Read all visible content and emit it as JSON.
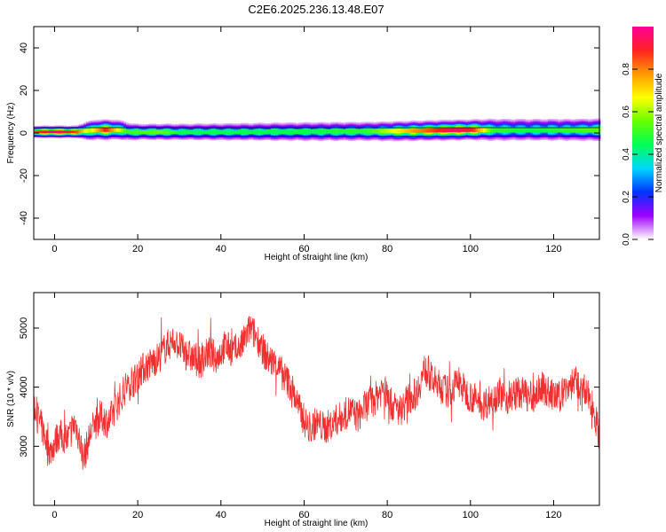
{
  "title": "C2E6.2025.236.13.48.E07",
  "chart_data": [
    {
      "type": "heatmap",
      "xlabel": "Height of straight line (km)",
      "ylabel": "Frequency (Hz)",
      "xlim": [
        -5,
        131
      ],
      "ylim": [
        -50,
        50
      ],
      "xticks": [
        0,
        20,
        40,
        60,
        80,
        100,
        120
      ],
      "yticks": [
        -40,
        -20,
        0,
        20,
        40
      ],
      "colorbar": {
        "label": "Normalized spectral amplitude",
        "range": [
          0,
          1
        ],
        "ticks": [
          0.0,
          0.2,
          0.4,
          0.6,
          0.8
        ],
        "colors": [
          "#ffffff",
          "#9f00ff",
          "#0033ff",
          "#00d8ff",
          "#00ff55",
          "#66ff00",
          "#ffff00",
          "#ff9900",
          "#ff2222",
          "#ff0099"
        ]
      },
      "band": {
        "center_hz": [
          [
            -5,
            0.5
          ],
          [
            5,
            0.5
          ],
          [
            10,
            1.5
          ],
          [
            15,
            1.5
          ],
          [
            18,
            0.5
          ],
          [
            40,
            0.5
          ],
          [
            80,
            0.8
          ],
          [
            100,
            1.5
          ],
          [
            110,
            1.5
          ],
          [
            131,
            1.5
          ]
        ],
        "half_width_hz": [
          [
            -5,
            1.8
          ],
          [
            5,
            1.8
          ],
          [
            8,
            3.0
          ],
          [
            16,
            3.0
          ],
          [
            20,
            2.5
          ],
          [
            60,
            3.0
          ],
          [
            100,
            3.0
          ],
          [
            105,
            3.5
          ],
          [
            131,
            3.5
          ]
        ],
        "peak": [
          [
            -5,
            0.85
          ],
          [
            0,
            1.0
          ],
          [
            5,
            0.85
          ],
          [
            8,
            0.6
          ],
          [
            12,
            0.9
          ],
          [
            17,
            0.5
          ],
          [
            25,
            0.55
          ],
          [
            30,
            0.45
          ],
          [
            40,
            0.45
          ],
          [
            60,
            0.45
          ],
          [
            75,
            0.5
          ],
          [
            85,
            0.75
          ],
          [
            95,
            0.95
          ],
          [
            100,
            0.9
          ],
          [
            105,
            0.5
          ],
          [
            115,
            0.45
          ],
          [
            131,
            0.55
          ]
        ]
      },
      "reference_lines_hz": [
        2.5,
        -1.5
      ]
    },
    {
      "type": "line",
      "xlabel": "Height of straight line (km)",
      "ylabel": "SNR (10 * v/v)",
      "xlim": [
        -5,
        131
      ],
      "ylim": [
        2000,
        5600
      ],
      "xticks": [
        0,
        20,
        40,
        60,
        80,
        100,
        120
      ],
      "yticks": [
        3000,
        4000,
        5000
      ],
      "color": "#f03030",
      "x": [
        -5,
        -3,
        -1,
        1,
        3,
        5,
        7,
        9,
        11,
        13,
        15,
        17,
        19,
        21,
        23,
        25,
        27,
        29,
        31,
        33,
        35,
        37,
        39,
        41,
        43,
        45,
        47,
        49,
        51,
        53,
        55,
        57,
        59,
        61,
        63,
        65,
        67,
        69,
        71,
        73,
        75,
        77,
        79,
        81,
        83,
        85,
        87,
        89,
        91,
        93,
        95,
        97,
        99,
        101,
        103,
        105,
        107,
        109,
        111,
        113,
        115,
        117,
        119,
        121,
        123,
        125,
        127,
        129,
        131
      ],
      "y": [
        3700,
        3300,
        2900,
        3200,
        3100,
        3400,
        2800,
        3300,
        3500,
        3400,
        3700,
        4000,
        4100,
        4300,
        4400,
        4500,
        4700,
        4800,
        4600,
        4500,
        4400,
        4600,
        4500,
        4700,
        4600,
        4700,
        5000,
        4800,
        4500,
        4400,
        4200,
        4000,
        3600,
        3300,
        3400,
        3300,
        3400,
        3500,
        3600,
        3500,
        3700,
        3800,
        4000,
        3700,
        3600,
        3800,
        3900,
        4300,
        4100,
        4000,
        3900,
        4100,
        3900,
        3800,
        3700,
        3800,
        3900,
        3800,
        3900,
        3900,
        3800,
        4000,
        3900,
        3800,
        4000,
        4100,
        3900,
        3800,
        3200
      ],
      "noise_amplitude": 280
    }
  ]
}
